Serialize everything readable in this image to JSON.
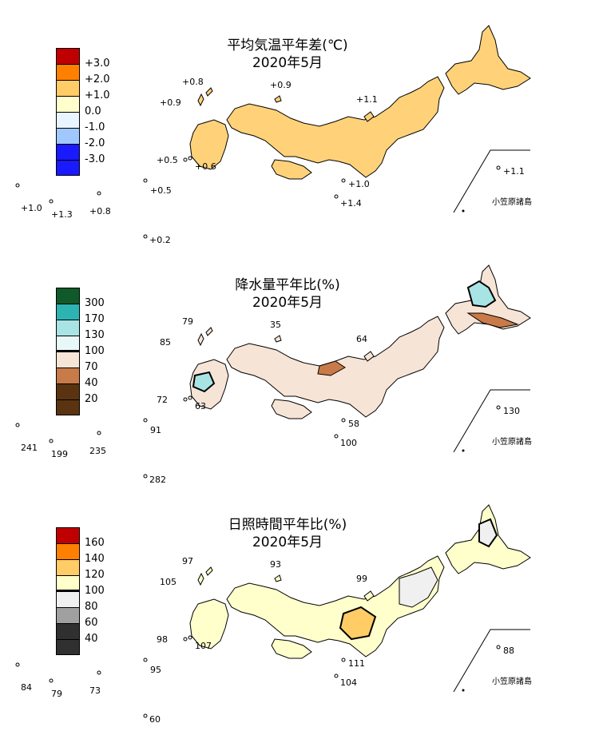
{
  "panels": [
    {
      "id": "temperature",
      "title_line1": "平均気温平年差(℃)",
      "title_line2": "2020年5月",
      "legend": {
        "labels": [
          "+3.0",
          "+2.0",
          "+1.0",
          "0.0",
          "-1.0",
          "-2.0",
          "-3.0"
        ],
        "colors": [
          "#c00000",
          "#ff8000",
          "#ffcc66",
          "#ffffcc",
          "#e8f4ff",
          "#a0c8ff",
          "#1a1aff"
        ]
      },
      "map_fill": "#ffd27a",
      "values": {
        "rebun": "+0.8",
        "oki": "+0.9",
        "tsushima": "+0.9",
        "goto": "+0.5",
        "goto2": "+0.6",
        "sado": "+1.1",
        "hachijo": "+1.0",
        "hachijo2": "+1.4",
        "amami": "+0.5",
        "yonaguni": "+1.0",
        "ishigaki": "+1.3",
        "naha": "+0.8",
        "minamidaito": "+0.2",
        "chichijima": "+1.1"
      },
      "inset_label": "小笠原諸島"
    },
    {
      "id": "precipitation",
      "title_line1": "降水量平年比(%)",
      "title_line2": "2020年5月",
      "legend": {
        "labels": [
          "300",
          "170",
          "130",
          "100",
          "70",
          "40",
          "20"
        ],
        "colors": [
          "#0f5a2a",
          "#2eb3b3",
          "#a8e4e4",
          "#e8f8f8",
          "#f6e4d6",
          "#c87a48",
          "#5a3410"
        ]
      },
      "map_fill": "#f6e4d6",
      "values": {
        "rebun": "79",
        "oki": "35",
        "tsushima": "85",
        "goto": "72",
        "goto2": "63",
        "sado": "64",
        "hachijo": "58",
        "hachijo2": "100",
        "amami": "91",
        "yonaguni": "241",
        "ishigaki": "199",
        "naha": "235",
        "minamidaito": "282",
        "chichijima": "130"
      },
      "inset_label": "小笠原諸島"
    },
    {
      "id": "sunshine",
      "title_line1": "日照時間平年比(%)",
      "title_line2": "2020年5月",
      "legend": {
        "labels": [
          "160",
          "140",
          "120",
          "100",
          "80",
          "60",
          "40"
        ],
        "colors": [
          "#c00000",
          "#ff8000",
          "#ffcc66",
          "#ffffcc",
          "#f0f0f0",
          "#a0a0a0",
          "#303030"
        ]
      },
      "map_fill": "#ffffcc",
      "values": {
        "rebun": "97",
        "oki": "93",
        "tsushima": "105",
        "goto": "98",
        "goto2": "107",
        "sado": "99",
        "hachijo": "111",
        "hachijo2": "104",
        "amami": "95",
        "yonaguni": "84",
        "ishigaki": "79",
        "naha": "73",
        "minamidaito": "60",
        "chichijima": "88"
      },
      "inset_label": "小笠原諸島"
    }
  ]
}
